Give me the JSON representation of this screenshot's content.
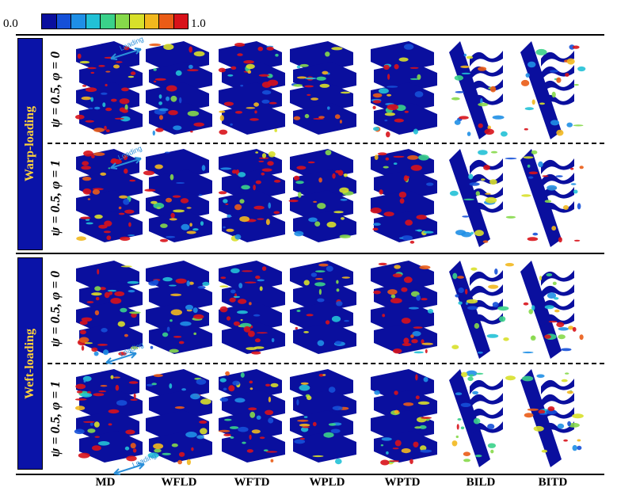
{
  "colorbar": {
    "min_label": "0.0",
    "max_label": "1.0",
    "colors": [
      "#0a0f9e",
      "#1550d8",
      "#1f8fe6",
      "#22c1d6",
      "#3ad18a",
      "#86d94a",
      "#d8e02a",
      "#f2b81e",
      "#ea5c16",
      "#d8121a"
    ]
  },
  "groups": [
    {
      "label": "Warp-loading",
      "rows": [
        {
          "label": "ψ = 0.5, φ = 0"
        },
        {
          "label": "ψ = 0.5, φ = 1"
        }
      ]
    },
    {
      "label": "Weft-loading",
      "rows": [
        {
          "label": "ψ = 0.5, φ = 0"
        },
        {
          "label": "ψ = 0.5, φ = 1"
        }
      ]
    }
  ],
  "columns": [
    "MD",
    "WFLD",
    "WFTD",
    "WPLD",
    "WPTD",
    "BILD",
    "BITD"
  ],
  "loading_annotation": "Loading",
  "colors": {
    "panel_bg": "#0a13a8",
    "panel_text": "#ffd23a",
    "base": "#0a0f9e",
    "damage": "#d8121a",
    "arrow": "#2a8fd9"
  }
}
